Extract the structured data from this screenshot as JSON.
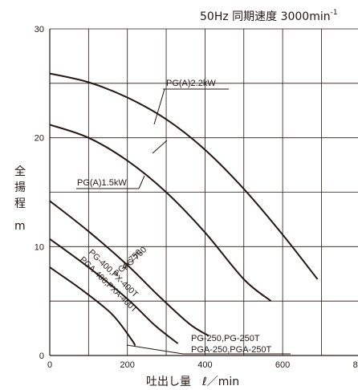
{
  "chart_data": {
    "type": "line",
    "title": "50Hz 同期速度 3000min",
    "title_sup": "-1",
    "xlabel": "吐出し量　ℓ／min",
    "ylabel": [
      "全",
      "揚",
      "程",
      "m"
    ],
    "xlim": [
      0,
      800
    ],
    "ylim": [
      0,
      30
    ],
    "x_ticks": [
      "0",
      "200",
      "400",
      "600",
      "800"
    ],
    "y_ticks": [
      "0",
      "10",
      "20",
      "30"
    ],
    "grid": true,
    "series": [
      {
        "name": "PG(A)2.2kW",
        "x": [
          0,
          100,
          200,
          300,
          400,
          500,
          600,
          690
        ],
        "y": [
          25.9,
          25.1,
          23.7,
          21.7,
          18.9,
          15.3,
          11.1,
          7.0
        ]
      },
      {
        "name": "PG(A)1.5kW",
        "x": [
          0,
          100,
          200,
          300,
          400,
          500,
          570
        ],
        "y": [
          21.2,
          20.0,
          17.9,
          15.0,
          11.3,
          7.0,
          5.0
        ]
      },
      {
        "name": "PG-750,PGA-750",
        "x": [
          0,
          100,
          200,
          280,
          360,
          410
        ],
        "y": [
          14.2,
          11.4,
          8.3,
          5.5,
          2.9,
          1.8
        ]
      },
      {
        "name": "PG-400,PX-400T,PGA-400,PXA-400T",
        "x": [
          0,
          100,
          200,
          270,
          330
        ],
        "y": [
          10.7,
          8.1,
          5.2,
          2.8,
          1.1
        ]
      },
      {
        "name": "PG-250,PG-250T,PGA-250,PGA-250T",
        "x": [
          0,
          80,
          160,
          210,
          220
        ],
        "y": [
          8.1,
          6.1,
          3.8,
          1.5,
          0.9
        ]
      }
    ],
    "annotations": [
      "PG(A)2.2kW",
      "PG(A)1.5kW",
      "PG-750",
      "PGA-750",
      "PG-400,PX-400T",
      "PGA-400,PXA-400T",
      "PG-250,PG-250T",
      "PGA-250,PGA-250T"
    ]
  }
}
